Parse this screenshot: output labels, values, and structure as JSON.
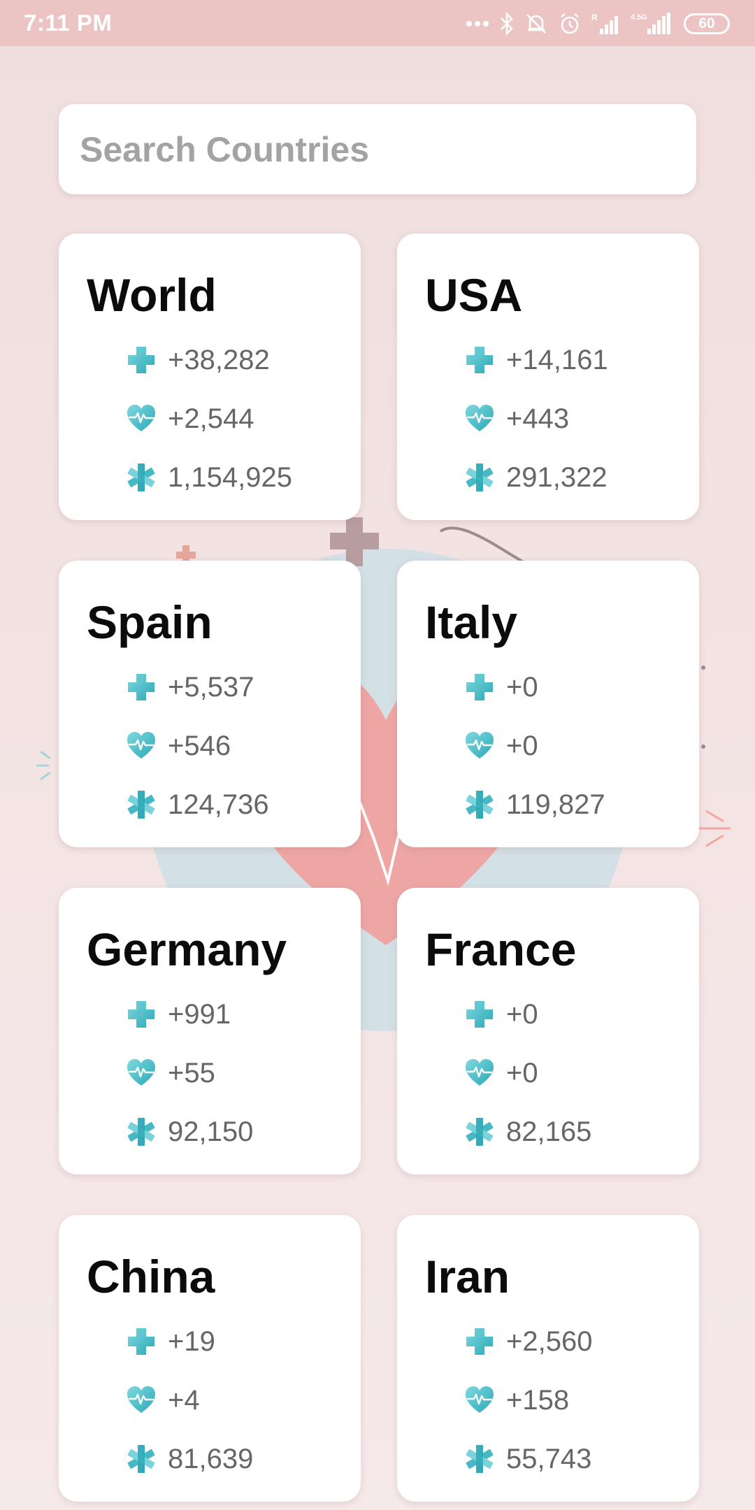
{
  "status_bar": {
    "time": "7:11 PM",
    "battery": "60",
    "network": "4.5G"
  },
  "search": {
    "placeholder": "Search Countries",
    "value": ""
  },
  "icons": {
    "new_cases": "medical-cross-icon",
    "new_deaths": "heart-pulse-icon",
    "total_cases": "asterisk-icon"
  },
  "colors": {
    "accent": "#3fb6c2",
    "background": "#f3e3e3",
    "status_bar": "#edc4c4"
  },
  "countries": [
    {
      "name": "World",
      "new_cases": "+38,282",
      "new_deaths": "+2,544",
      "total": "1,154,925"
    },
    {
      "name": "USA",
      "new_cases": "+14,161",
      "new_deaths": "+443",
      "total": "291,322"
    },
    {
      "name": "Spain",
      "new_cases": "+5,537",
      "new_deaths": "+546",
      "total": "124,736"
    },
    {
      "name": "Italy",
      "new_cases": "+0",
      "new_deaths": "+0",
      "total": "119,827"
    },
    {
      "name": "Germany",
      "new_cases": "+991",
      "new_deaths": "+55",
      "total": "92,150"
    },
    {
      "name": "France",
      "new_cases": "+0",
      "new_deaths": "+0",
      "total": "82,165"
    },
    {
      "name": "China",
      "new_cases": "+19",
      "new_deaths": "+4",
      "total": "81,639"
    },
    {
      "name": "Iran",
      "new_cases": "+2,560",
      "new_deaths": "+158",
      "total": "55,743"
    }
  ]
}
